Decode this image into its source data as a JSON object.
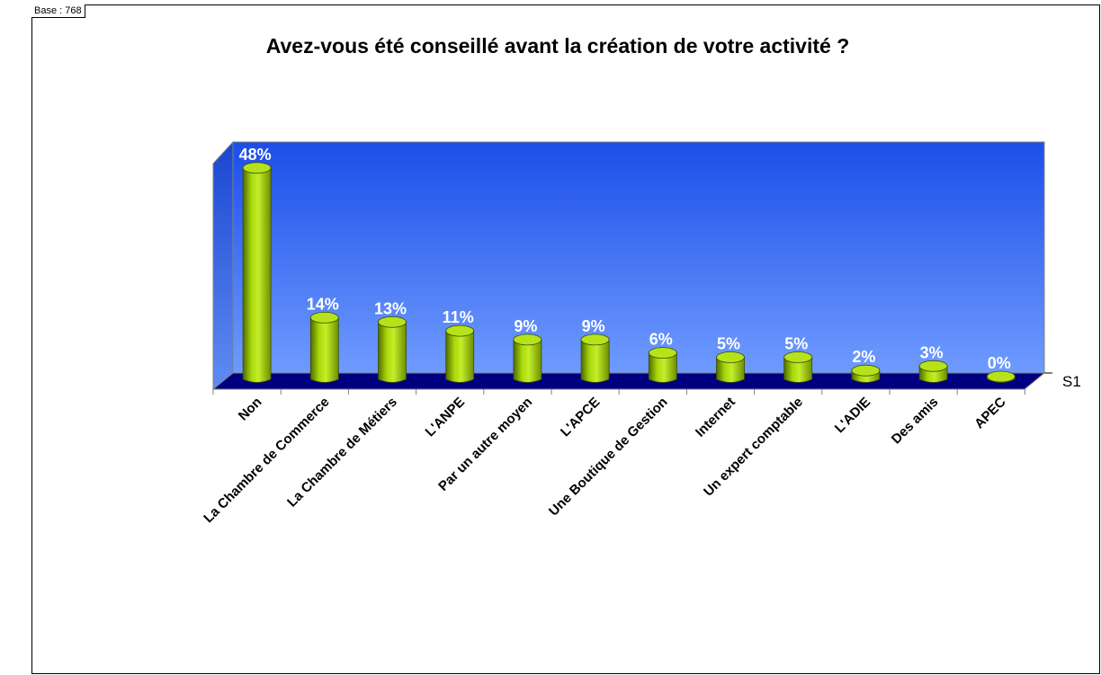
{
  "header": {
    "base": "Base : 768"
  },
  "chart_data": {
    "type": "bar",
    "title": "Avez-vous été conseillé avant la création de votre activité ?",
    "categories": [
      "Non",
      "La Chambre de Commerce",
      "La Chambre de Métiers",
      "L'ANPE",
      "Par un autre moyen",
      "L'APCE",
      "Une Boutique de Gestion",
      "Internet",
      "Un expert comptable",
      "L'ADIE",
      "Des amis",
      "APEC"
    ],
    "series": [
      {
        "name": "S1",
        "values": [
          48,
          14,
          13,
          11,
          9,
          9,
          6,
          5,
          5,
          2,
          3,
          0
        ]
      }
    ],
    "value_labels": [
      "48%",
      "14%",
      "13%",
      "11%",
      "9%",
      "9%",
      "6%",
      "5%",
      "5%",
      "2%",
      "3%",
      "0%"
    ],
    "ylim": [
      0,
      50
    ],
    "grid": false,
    "legend": "none",
    "colors": {
      "bar": "#99cc00",
      "wall_top": "#1c4ee8",
      "wall_bottom": "#6f9bff",
      "floor": "#000080"
    }
  }
}
